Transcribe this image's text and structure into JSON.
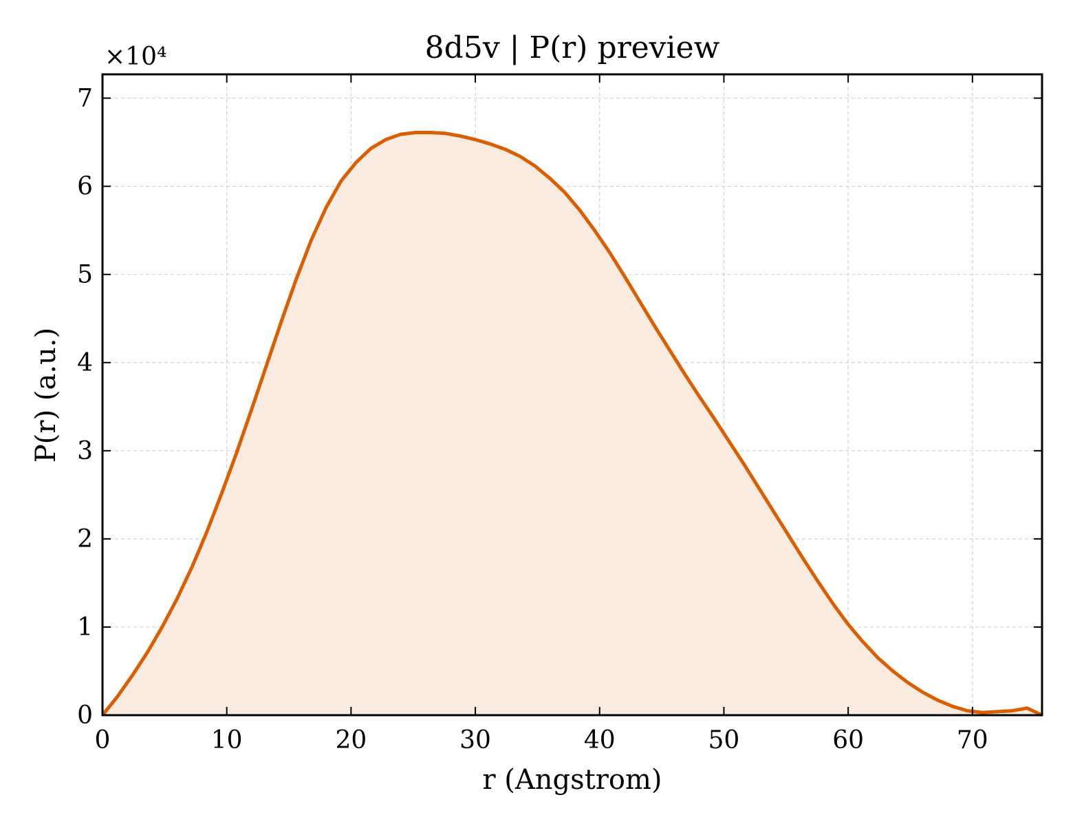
{
  "chart_data": {
    "type": "area",
    "title": "8d5v | P(r) preview",
    "xlabel": "r (Angstrom)",
    "ylabel": "P(r) (a.u.)",
    "y_multiplier_label": "×10⁴",
    "xlim": [
      0,
      75.6
    ],
    "ylim": [
      0,
      7.27
    ],
    "y_scale_factor": 10000,
    "xticks": [
      0,
      10,
      20,
      30,
      40,
      50,
      60,
      70
    ],
    "yticks": [
      0,
      1,
      2,
      3,
      4,
      5,
      6,
      7
    ],
    "grid": true,
    "line_color": "#d95f02",
    "fill_color": "#f9ebe0",
    "series": [
      {
        "x": [
          0,
          1.2,
          2.4,
          3.6,
          4.8,
          6.0,
          7.2,
          8.4,
          9.6,
          10.8,
          12.0,
          13.2,
          14.4,
          15.6,
          16.8,
          18.0,
          19.2,
          20.4,
          21.6,
          22.8,
          24.0,
          25.2,
          26.4,
          27.6,
          28.8,
          30.0,
          31.2,
          32.4,
          33.6,
          34.8,
          36.0,
          37.2,
          38.4,
          39.6,
          40.8,
          42.0,
          43.2,
          44.4,
          45.6,
          46.8,
          48.0,
          49.2,
          50.4,
          51.6,
          52.8,
          54.0,
          55.2,
          56.4,
          57.6,
          58.8,
          60.0,
          61.2,
          62.4,
          63.6,
          64.8,
          66.0,
          67.2,
          68.4,
          69.6,
          70.8,
          72.0,
          73.2,
          74.4,
          75.6
        ],
        "y": [
          0,
          0.21,
          0.45,
          0.71,
          1.0,
          1.32,
          1.68,
          2.08,
          2.52,
          2.98,
          3.47,
          3.97,
          4.47,
          4.95,
          5.39,
          5.76,
          6.06,
          6.27,
          6.43,
          6.53,
          6.59,
          6.61,
          6.61,
          6.6,
          6.57,
          6.53,
          6.48,
          6.42,
          6.34,
          6.23,
          6.09,
          5.93,
          5.73,
          5.5,
          5.25,
          4.98,
          4.7,
          4.42,
          4.15,
          3.88,
          3.62,
          3.37,
          3.11,
          2.85,
          2.58,
          2.31,
          2.04,
          1.77,
          1.51,
          1.26,
          1.03,
          0.83,
          0.65,
          0.5,
          0.37,
          0.26,
          0.17,
          0.1,
          0.05,
          0.03,
          0.04,
          0.05,
          0.08,
          0.0
        ]
      }
    ]
  }
}
